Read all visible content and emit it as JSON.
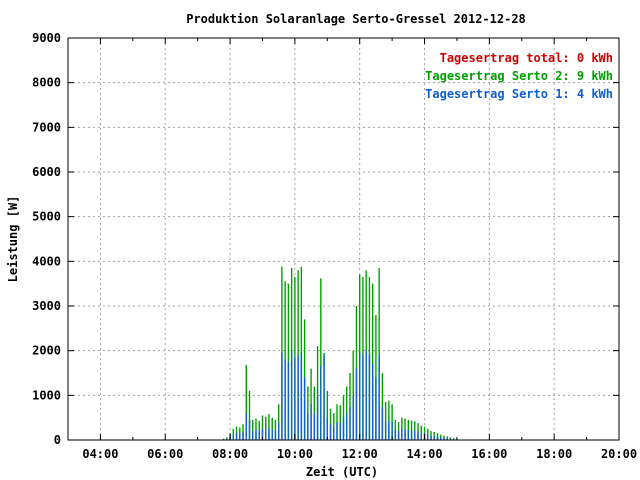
{
  "chart_data": {
    "type": "bar",
    "title": "Produktion Solaranlage Serto-Gressel 2012-12-28",
    "xlabel": "Zeit (UTC)",
    "ylabel": "Leistung [W]",
    "xlim": [
      3,
      20
    ],
    "ylim": [
      0,
      9000
    ],
    "grid": true,
    "legend_position": "top-right",
    "x_ticks": [
      "04:00",
      "06:00",
      "08:00",
      "10:00",
      "12:00",
      "14:00",
      "16:00",
      "18:00",
      "20:00"
    ],
    "y_ticks": [
      "0",
      "1000",
      "2000",
      "3000",
      "4000",
      "5000",
      "6000",
      "7000",
      "8000",
      "9000"
    ],
    "legend": [
      {
        "label": "Tagesertrag total: 0 kWh",
        "color": "#d00000"
      },
      {
        "label": "Tagesertrag Serto 2: 9 kWh",
        "color": "#00a000"
      },
      {
        "label": "Tagesertrag Serto 1: 4 kWh",
        "color": "#1060d0"
      }
    ],
    "series": [
      {
        "name": "Serto 2",
        "color": "#00a000",
        "x": [
          7.7,
          7.8,
          7.9,
          8.0,
          8.1,
          8.2,
          8.3,
          8.4,
          8.5,
          8.6,
          8.7,
          8.8,
          8.9,
          9.0,
          9.1,
          9.2,
          9.3,
          9.4,
          9.5,
          9.6,
          9.7,
          9.8,
          9.9,
          10.0,
          10.1,
          10.2,
          10.3,
          10.4,
          10.5,
          10.6,
          10.7,
          10.8,
          10.9,
          11.0,
          11.1,
          11.2,
          11.3,
          11.4,
          11.5,
          11.6,
          11.7,
          11.8,
          11.9,
          12.0,
          12.1,
          12.2,
          12.3,
          12.4,
          12.5,
          12.6,
          12.7,
          12.8,
          12.9,
          13.0,
          13.1,
          13.2,
          13.3,
          13.4,
          13.5,
          13.6,
          13.7,
          13.8,
          13.9,
          14.0,
          14.1,
          14.2,
          14.3,
          14.4,
          14.5,
          14.6,
          14.7,
          14.8,
          14.9,
          15.0,
          15.1,
          15.2,
          15.3,
          15.4
        ],
        "values": [
          10,
          30,
          60,
          150,
          250,
          300,
          280,
          350,
          1680,
          1100,
          450,
          480,
          430,
          550,
          520,
          580,
          500,
          450,
          800,
          3880,
          3550,
          3500,
          3850,
          3650,
          3800,
          3880,
          2700,
          1200,
          1600,
          1200,
          2100,
          3620,
          1950,
          1100,
          700,
          600,
          800,
          780,
          1000,
          1200,
          1500,
          2000,
          3000,
          3700,
          3650,
          3800,
          3650,
          3500,
          2800,
          3850,
          1500,
          850,
          880,
          800,
          450,
          400,
          500,
          480,
          450,
          440,
          420,
          380,
          320,
          300,
          250,
          200,
          180,
          150,
          120,
          100,
          80,
          60,
          40,
          20,
          10,
          5,
          2,
          1
        ]
      },
      {
        "name": "Serto 1",
        "color": "#1060d0",
        "x": [
          7.7,
          7.8,
          7.9,
          8.0,
          8.1,
          8.2,
          8.3,
          8.4,
          8.5,
          8.6,
          8.7,
          8.8,
          8.9,
          9.0,
          9.1,
          9.2,
          9.3,
          9.4,
          9.5,
          9.6,
          9.7,
          9.8,
          9.9,
          10.0,
          10.1,
          10.2,
          10.3,
          10.4,
          10.5,
          10.6,
          10.7,
          10.8,
          10.9,
          11.0,
          11.1,
          11.2,
          11.3,
          11.4,
          11.5,
          11.6,
          11.7,
          11.8,
          11.9,
          12.0,
          12.1,
          12.2,
          12.3,
          12.4,
          12.5,
          12.6,
          12.7,
          12.8,
          12.9,
          13.0,
          13.1,
          13.2,
          13.3,
          13.4,
          13.5,
          13.6,
          13.7,
          13.8,
          13.9,
          14.0,
          14.1,
          14.2,
          14.3,
          14.4,
          14.5,
          14.6,
          14.7,
          14.8,
          14.9,
          15.0,
          15.1,
          15.2,
          15.3,
          15.4
        ],
        "values": [
          5,
          15,
          30,
          80,
          120,
          150,
          140,
          170,
          600,
          450,
          200,
          220,
          200,
          250,
          240,
          270,
          230,
          210,
          380,
          1950,
          1800,
          1750,
          2000,
          1850,
          1900,
          1950,
          1400,
          600,
          800,
          600,
          1000,
          1650,
          1900,
          500,
          350,
          300,
          400,
          380,
          500,
          600,
          750,
          1000,
          1600,
          1950,
          1900,
          2000,
          1900,
          1700,
          1400,
          1900,
          750,
          420,
          430,
          400,
          220,
          200,
          250,
          240,
          220,
          220,
          210,
          190,
          160,
          150,
          120,
          100,
          90,
          75,
          60,
          50,
          40,
          30,
          20,
          10,
          5,
          3,
          1,
          0
        ]
      }
    ]
  }
}
